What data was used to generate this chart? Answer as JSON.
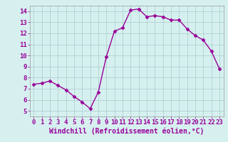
{
  "x": [
    0,
    1,
    2,
    3,
    4,
    5,
    6,
    7,
    8,
    9,
    10,
    11,
    12,
    13,
    14,
    15,
    16,
    17,
    18,
    19,
    20,
    21,
    22,
    23
  ],
  "y": [
    7.4,
    7.5,
    7.7,
    7.3,
    6.9,
    6.3,
    5.8,
    5.2,
    6.7,
    9.9,
    12.2,
    12.5,
    14.1,
    14.2,
    13.5,
    13.6,
    13.5,
    13.2,
    13.2,
    12.4,
    11.8,
    11.4,
    10.4,
    8.8
  ],
  "color": "#990099",
  "marker": "D",
  "markersize": 2.5,
  "linewidth": 1.0,
  "bg_color": "#d6f0f0",
  "grid_color": "#aacccc",
  "xlabel": "Windchill (Refroidissement éolien,°C)",
  "ylabel": "",
  "xlim": [
    -0.5,
    23.5
  ],
  "ylim": [
    4.5,
    14.5
  ],
  "xticks": [
    0,
    1,
    2,
    3,
    4,
    5,
    6,
    7,
    8,
    9,
    10,
    11,
    12,
    13,
    14,
    15,
    16,
    17,
    18,
    19,
    20,
    21,
    22,
    23
  ],
  "yticks": [
    5,
    6,
    7,
    8,
    9,
    10,
    11,
    12,
    13,
    14
  ],
  "tick_fontsize": 6.5,
  "xlabel_fontsize": 7,
  "tick_color": "#990099",
  "spine_color": "#999999"
}
